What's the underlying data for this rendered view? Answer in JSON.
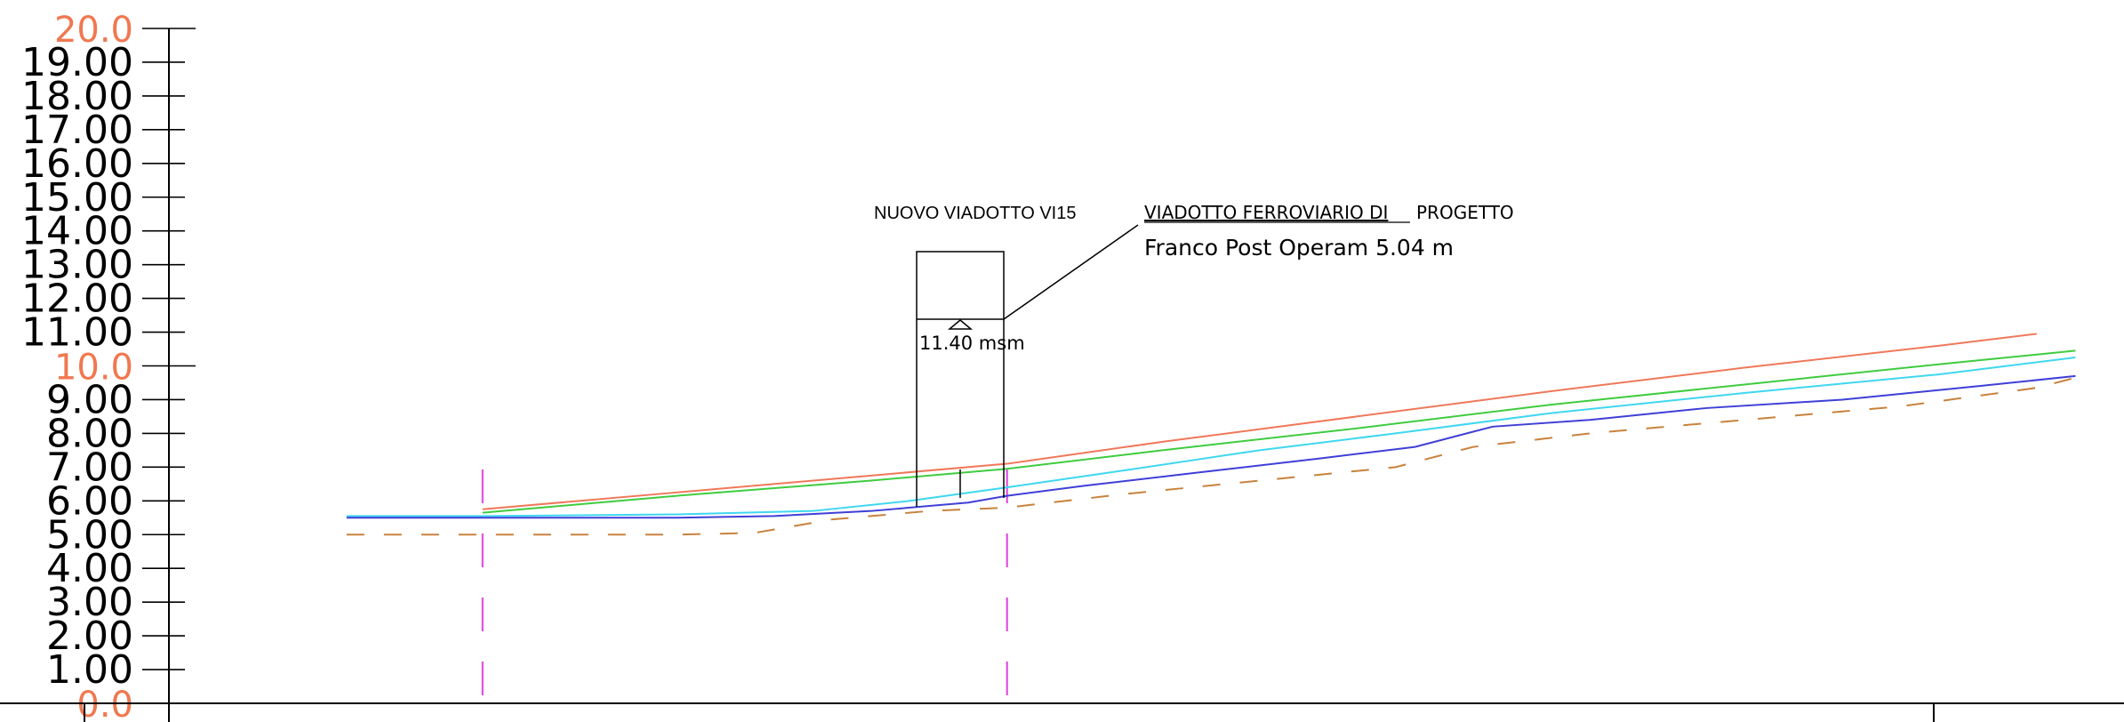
{
  "structure": {
    "name": "NUOVO VIADOTTO VI15",
    "callout_line1_underlined": "VIADOTTO FERROVIARIO DI",
    "callout_line1_rest": "PROGETTO",
    "callout_line2": "Franco Post Operam 5.04 m",
    "level_label": "11.40 msm"
  },
  "colors": {
    "axis": "#000000",
    "major_label": "#f07850",
    "profile_red": "#f0785a",
    "profile_green": "#3fcc3f",
    "profile_cyan": "#3fd7f0",
    "profile_blue": "#3f3fd7",
    "ground_dashed": "#c8823c",
    "section_marker": "#e040e0"
  },
  "chart_data": {
    "type": "line",
    "title": "",
    "xlabel": "",
    "ylabel": "",
    "ylim": [
      0,
      20
    ],
    "y_ticks": [
      "0.0",
      "1.00",
      "2.00",
      "3.00",
      "4.00",
      "5.00",
      "6.00",
      "7.00",
      "8.00",
      "9.00",
      "10.0",
      "11.00",
      "12.00",
      "13.00",
      "14.00",
      "15.00",
      "16.00",
      "17.00",
      "18.00",
      "19.00",
      "20.0"
    ],
    "major_ticks": [
      "0.0",
      "10.0",
      "20.0"
    ],
    "xlim": [
      0,
      100
    ],
    "section_markers_x": [
      15,
      42
    ],
    "series": [
      {
        "color": "red",
        "style": "solid",
        "points": [
          [
            15,
            5.75
          ],
          [
            25,
            6.25
          ],
          [
            35,
            6.75
          ],
          [
            42,
            7.1
          ],
          [
            50,
            7.75
          ],
          [
            60,
            8.5
          ],
          [
            70,
            9.25
          ],
          [
            80,
            9.95
          ],
          [
            90,
            10.6
          ],
          [
            95,
            10.95
          ]
        ]
      },
      {
        "color": "green",
        "style": "solid",
        "points": [
          [
            15,
            5.65
          ],
          [
            25,
            6.15
          ],
          [
            35,
            6.6
          ],
          [
            42,
            6.95
          ],
          [
            50,
            7.5
          ],
          [
            60,
            8.15
          ],
          [
            70,
            8.85
          ],
          [
            80,
            9.45
          ],
          [
            90,
            10.05
          ],
          [
            97,
            10.45
          ]
        ]
      },
      {
        "color": "cyan",
        "style": "solid",
        "points": [
          [
            8,
            5.55
          ],
          [
            15,
            5.55
          ],
          [
            25,
            5.6
          ],
          [
            32,
            5.7
          ],
          [
            37,
            6.0
          ],
          [
            42,
            6.4
          ],
          [
            48,
            6.9
          ],
          [
            55,
            7.5
          ],
          [
            62,
            8.0
          ],
          [
            70,
            8.6
          ],
          [
            80,
            9.2
          ],
          [
            90,
            9.75
          ],
          [
            97,
            10.25
          ]
        ]
      },
      {
        "color": "blue",
        "style": "solid",
        "points": [
          [
            8,
            5.5
          ],
          [
            15,
            5.5
          ],
          [
            25,
            5.5
          ],
          [
            30,
            5.55
          ],
          [
            35,
            5.7
          ],
          [
            40,
            5.95
          ],
          [
            42,
            6.15
          ],
          [
            46,
            6.45
          ],
          [
            52,
            6.85
          ],
          [
            58,
            7.25
          ],
          [
            63,
            7.6
          ],
          [
            67,
            8.2
          ],
          [
            72,
            8.4
          ],
          [
            78,
            8.75
          ],
          [
            85,
            9.0
          ],
          [
            92,
            9.4
          ],
          [
            97,
            9.7
          ]
        ]
      },
      {
        "color": "brown",
        "style": "dashed",
        "points": [
          [
            8,
            5.0
          ],
          [
            15,
            5.0
          ],
          [
            25,
            5.0
          ],
          [
            29,
            5.05
          ],
          [
            33,
            5.45
          ],
          [
            38,
            5.7
          ],
          [
            42,
            5.8
          ],
          [
            48,
            6.2
          ],
          [
            55,
            6.6
          ],
          [
            62,
            7.0
          ],
          [
            66,
            7.6
          ],
          [
            72,
            8.0
          ],
          [
            80,
            8.4
          ],
          [
            88,
            8.8
          ],
          [
            95,
            9.35
          ],
          [
            97,
            9.65
          ]
        ]
      }
    ]
  }
}
